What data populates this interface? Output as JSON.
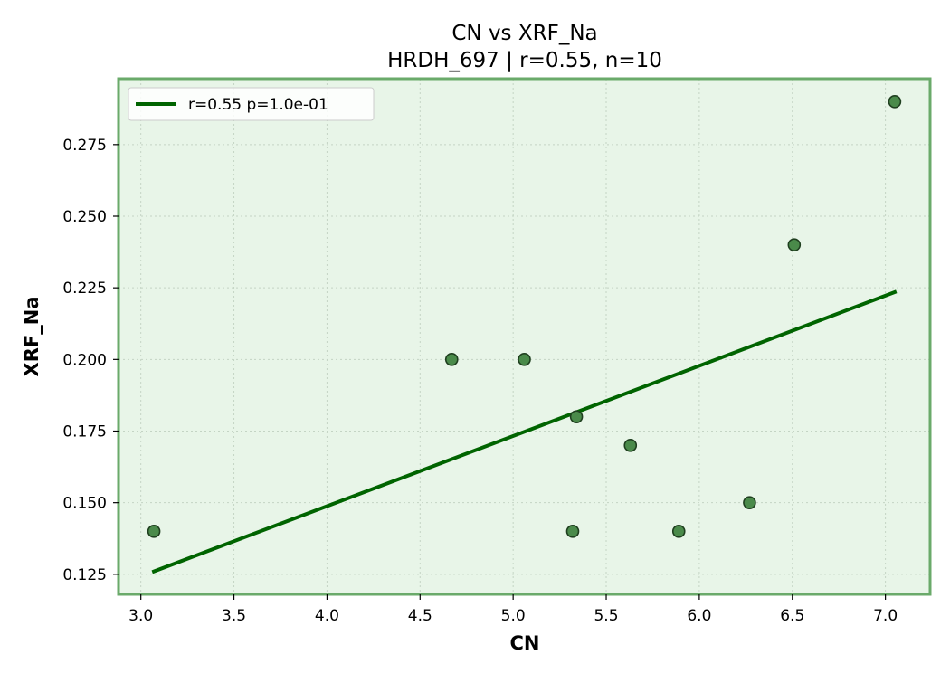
{
  "chart_data": {
    "type": "scatter",
    "title": "CN vs XRF_Na",
    "subtitle": "HRDH_697 | r=0.55, n=10",
    "xlabel": "CN",
    "ylabel": "XRF_Na",
    "xlim": [
      2.88,
      7.24
    ],
    "ylim": [
      0.118,
      0.298
    ],
    "xticks": [
      3.0,
      3.5,
      4.0,
      4.5,
      5.0,
      5.5,
      6.0,
      6.5,
      7.0
    ],
    "xtick_labels": [
      "3.0",
      "3.5",
      "4.0",
      "4.5",
      "5.0",
      "5.5",
      "6.0",
      "6.5",
      "7.0"
    ],
    "yticks": [
      0.125,
      0.15,
      0.175,
      0.2,
      0.225,
      0.25,
      0.275
    ],
    "ytick_labels": [
      "0.125",
      "0.150",
      "0.175",
      "0.200",
      "0.225",
      "0.250",
      "0.275"
    ],
    "grid": true,
    "legend_position": "top-left",
    "points": [
      {
        "x": 3.07,
        "y": 0.14
      },
      {
        "x": 4.67,
        "y": 0.2
      },
      {
        "x": 5.06,
        "y": 0.2
      },
      {
        "x": 5.32,
        "y": 0.14
      },
      {
        "x": 5.34,
        "y": 0.18
      },
      {
        "x": 5.63,
        "y": 0.17
      },
      {
        "x": 5.89,
        "y": 0.14
      },
      {
        "x": 6.27,
        "y": 0.15
      },
      {
        "x": 6.51,
        "y": 0.24
      },
      {
        "x": 7.05,
        "y": 0.29
      }
    ],
    "fit_line": {
      "label": "r=0.55  p=1.0e-01",
      "x": [
        3.07,
        7.05
      ],
      "y": [
        0.126,
        0.2235
      ]
    },
    "colors": {
      "background": "#e8f5e8",
      "frame": "#6aaa6a",
      "line": "#006400",
      "marker_fill": "#4a8a4a",
      "marker_edge": "#1f3f1f",
      "grid": "#c4d4c4"
    }
  }
}
